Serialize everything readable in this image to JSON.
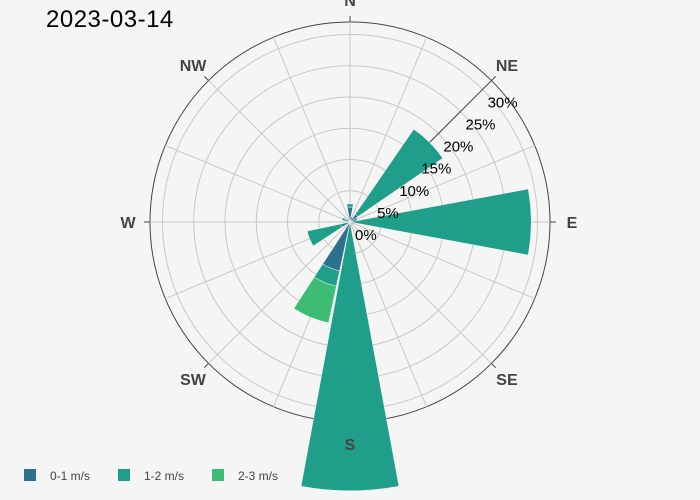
{
  "chart_data": {
    "type": "barpolar",
    "title": "2023-03-14",
    "directions": [
      "N",
      "NE",
      "E",
      "SE",
      "S",
      "SW",
      "W",
      "NW"
    ],
    "radial_axis": {
      "range": [
        0,
        32
      ],
      "tickvals": [
        0,
        5,
        10,
        15,
        20,
        25,
        30
      ],
      "ticktext": [
        "0%",
        "5%",
        "10%",
        "15%",
        "20%",
        "25%",
        "30%"
      ],
      "angle_deg_from_north": 45
    },
    "angular_grid_step_deg": 22.5,
    "legend_position": "bottom-left",
    "series": [
      {
        "name": "0-1 m/s",
        "color": "#2c728e",
        "bars": [
          {
            "dir": 0,
            "value": 2.4
          },
          {
            "dir": 22.5,
            "value": 0.8
          },
          {
            "dir": 45,
            "value": 1.5
          },
          {
            "dir": 67.5,
            "value": 1.2
          },
          {
            "dir": 202.5,
            "value": 8.0
          },
          {
            "dir": 247.5,
            "value": 1.5
          },
          {
            "dir": 292.5,
            "value": 0.8
          }
        ]
      },
      {
        "name": "1-2 m/s",
        "color": "#1f9e89",
        "bars": [
          {
            "dir": 0,
            "value": 0.5
          },
          {
            "dir": 45,
            "value": 16.5
          },
          {
            "dir": 90,
            "value": 29.0
          },
          {
            "dir": 180,
            "value": 43.0
          },
          {
            "dir": 202.5,
            "value": 2.5
          },
          {
            "dir": 247.5,
            "value": 5.5
          },
          {
            "dir": 292.5,
            "value": 0.5
          }
        ]
      },
      {
        "name": "2-3 m/s",
        "color": "#3dbc74",
        "bars": [
          {
            "dir": 202.5,
            "value": 6.0
          }
        ]
      }
    ]
  }
}
